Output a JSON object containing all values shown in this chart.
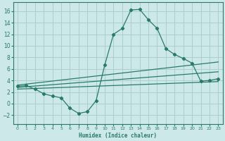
{
  "xlabel": "Humidex (Indice chaleur)",
  "background_color": "#cce8e8",
  "grid_color": "#aacfcf",
  "line_color": "#2a7a6a",
  "spine_color": "#2a7a6a",
  "xlim": [
    -0.5,
    23.5
  ],
  "ylim": [
    -3.5,
    17.5
  ],
  "yticks": [
    -2,
    0,
    2,
    4,
    6,
    8,
    10,
    12,
    14,
    16
  ],
  "xticks": [
    0,
    1,
    2,
    3,
    4,
    5,
    6,
    7,
    8,
    9,
    10,
    11,
    12,
    13,
    14,
    15,
    16,
    17,
    18,
    19,
    20,
    21,
    22,
    23
  ],
  "line1_x": [
    0,
    23
  ],
  "line1_y": [
    3.2,
    7.2
  ],
  "line2_x": [
    0,
    23
  ],
  "line2_y": [
    2.8,
    5.5
  ],
  "line3_x": [
    0,
    23
  ],
  "line3_y": [
    2.5,
    3.8
  ],
  "curve_x": [
    0,
    1,
    2,
    3,
    4,
    5,
    6,
    7,
    8,
    9,
    10,
    11,
    12,
    13,
    14,
    15,
    16,
    17,
    18,
    19,
    20,
    21,
    22,
    23
  ],
  "curve_y": [
    3.0,
    3.1,
    2.5,
    1.7,
    1.3,
    1.0,
    -0.8,
    -1.7,
    -1.4,
    0.5,
    6.7,
    12.0,
    13.0,
    16.2,
    16.3,
    14.5,
    13.0,
    9.5,
    8.5,
    7.8,
    7.0,
    3.9,
    4.0,
    4.3
  ],
  "xlabel_fontsize": 5.5,
  "tick_fontsize_x": 4.5,
  "tick_fontsize_y": 5.5
}
